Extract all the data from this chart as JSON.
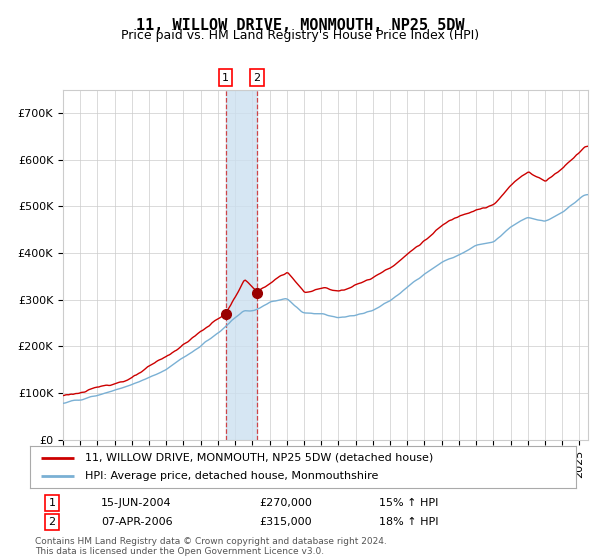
{
  "title": "11, WILLOW DRIVE, MONMOUTH, NP25 5DW",
  "subtitle": "Price paid vs. HM Land Registry's House Price Index (HPI)",
  "ylim": [
    0,
    750000
  ],
  "yticks": [
    0,
    100000,
    200000,
    300000,
    400000,
    500000,
    600000,
    700000
  ],
  "ytick_labels": [
    "£0",
    "£100K",
    "£200K",
    "£300K",
    "£400K",
    "£500K",
    "£600K",
    "£700K"
  ],
  "red_line_color": "#cc0000",
  "blue_line_color": "#7ab0d4",
  "marker_color": "#990000",
  "vline_color": "#cc0000",
  "vspan_color": "#cce0f0",
  "grid_color": "#cccccc",
  "background_color": "#ffffff",
  "title_fontsize": 11,
  "subtitle_fontsize": 9,
  "tick_fontsize": 8,
  "legend_fontsize": 8,
  "purchase1_date_num": 2004.45,
  "purchase1_price": 270000,
  "purchase1_label": "15-JUN-2004",
  "purchase1_pct": "15%",
  "purchase2_date_num": 2006.27,
  "purchase2_price": 315000,
  "purchase2_label": "07-APR-2006",
  "purchase2_pct": "18%",
  "legend1": "11, WILLOW DRIVE, MONMOUTH, NP25 5DW (detached house)",
  "legend2": "HPI: Average price, detached house, Monmouthshire",
  "footer1": "Contains HM Land Registry data © Crown copyright and database right 2024.",
  "footer2": "This data is licensed under the Open Government Licence v3.0.",
  "xstart": 1995.0,
  "xend": 2025.5,
  "keypoints_red": [
    [
      1995.0,
      95000
    ],
    [
      1997,
      110000
    ],
    [
      1999,
      135000
    ],
    [
      2001,
      175000
    ],
    [
      2003,
      230000
    ],
    [
      2004.45,
      270000
    ],
    [
      2005.5,
      340000
    ],
    [
      2006.27,
      315000
    ],
    [
      2007,
      330000
    ],
    [
      2008,
      355000
    ],
    [
      2009,
      310000
    ],
    [
      2010,
      320000
    ],
    [
      2011,
      315000
    ],
    [
      2012,
      330000
    ],
    [
      2013,
      345000
    ],
    [
      2014,
      370000
    ],
    [
      2015,
      400000
    ],
    [
      2016,
      430000
    ],
    [
      2017,
      460000
    ],
    [
      2018,
      480000
    ],
    [
      2019,
      500000
    ],
    [
      2020,
      510000
    ],
    [
      2021,
      550000
    ],
    [
      2022,
      580000
    ],
    [
      2023,
      560000
    ],
    [
      2024,
      590000
    ],
    [
      2025.3,
      640000
    ]
  ],
  "keypoints_blue": [
    [
      1995.0,
      78000
    ],
    [
      1997,
      92000
    ],
    [
      1999,
      115000
    ],
    [
      2001,
      148000
    ],
    [
      2003,
      195000
    ],
    [
      2004.45,
      235000
    ],
    [
      2005.5,
      268000
    ],
    [
      2006.27,
      270000
    ],
    [
      2007,
      285000
    ],
    [
      2008,
      295000
    ],
    [
      2009,
      265000
    ],
    [
      2010,
      265000
    ],
    [
      2011,
      260000
    ],
    [
      2012,
      265000
    ],
    [
      2013,
      275000
    ],
    [
      2014,
      295000
    ],
    [
      2015,
      320000
    ],
    [
      2016,
      350000
    ],
    [
      2017,
      375000
    ],
    [
      2018,
      390000
    ],
    [
      2019,
      410000
    ],
    [
      2020,
      415000
    ],
    [
      2021,
      450000
    ],
    [
      2022,
      470000
    ],
    [
      2023,
      460000
    ],
    [
      2024,
      480000
    ],
    [
      2025.3,
      520000
    ]
  ]
}
